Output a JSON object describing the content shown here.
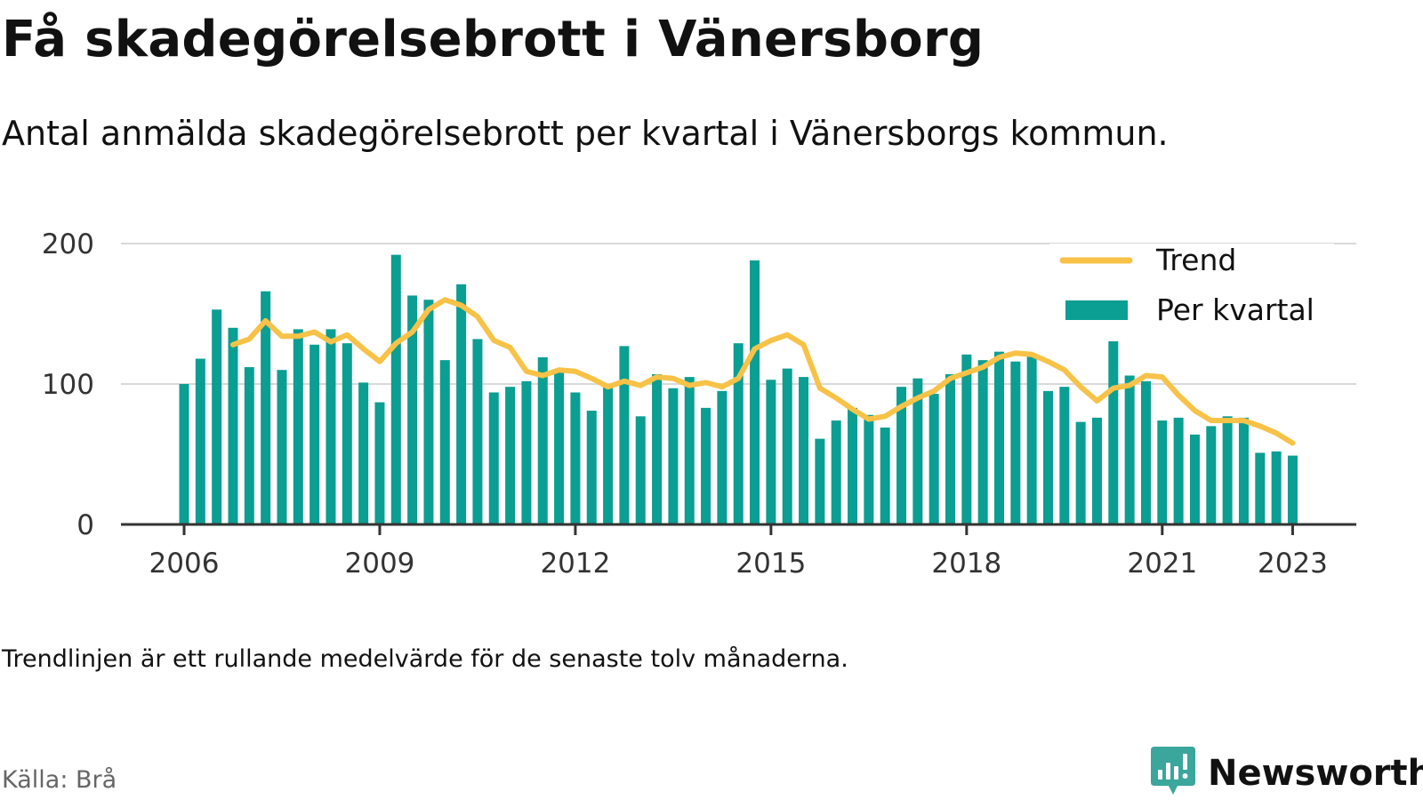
{
  "header": {
    "title": "Få skadegörelsebrott i Vänersborg",
    "subtitle": "Antal anmälda skadegörelsebrott per kvartal i Vänersborgs kommun."
  },
  "footer": {
    "footnote": "Trendlinjen är ett rullande medelvärde för de senaste tolv månaderna.",
    "source": "Källa: Brå",
    "brand_name": "Newsworthy"
  },
  "colors": {
    "bar": "#0b9e92",
    "trend": "#f7c247",
    "grid": "#d9d9d9",
    "axis": "#333333",
    "text": "#111111",
    "source": "#666666",
    "brand": "#3aa69c"
  },
  "icons": {
    "brand": "bar-chart-speech-bubble-icon"
  },
  "chart_data": {
    "type": "bar",
    "title": "Få skadegörelsebrott i Vänersborg",
    "subtitle": "Antal anmälda skadegörelsebrott per kvartal i Vänersborgs kommun.",
    "xlabel": "",
    "ylabel": "",
    "ylim": [
      0,
      200
    ],
    "yticks": [
      0,
      100,
      200
    ],
    "xticks": [
      {
        "label": "2006",
        "x": "2006 Q1"
      },
      {
        "label": "2009",
        "x": "2009 Q1"
      },
      {
        "label": "2012",
        "x": "2012 Q1"
      },
      {
        "label": "2015",
        "x": "2015 Q1"
      },
      {
        "label": "2018",
        "x": "2018 Q1"
      },
      {
        "label": "2021",
        "x": "2021 Q1"
      },
      {
        "label": "2023",
        "x": "2023 Q1"
      }
    ],
    "grid": true,
    "legend": "top-right",
    "categories": [
      "2006 Q1",
      "2006 Q2",
      "2006 Q3",
      "2006 Q4",
      "2007 Q1",
      "2007 Q2",
      "2007 Q3",
      "2007 Q4",
      "2008 Q1",
      "2008 Q2",
      "2008 Q3",
      "2008 Q4",
      "2009 Q1",
      "2009 Q2",
      "2009 Q3",
      "2009 Q4",
      "2010 Q1",
      "2010 Q2",
      "2010 Q3",
      "2010 Q4",
      "2011 Q1",
      "2011 Q2",
      "2011 Q3",
      "2011 Q4",
      "2012 Q1",
      "2012 Q2",
      "2012 Q3",
      "2012 Q4",
      "2013 Q1",
      "2013 Q2",
      "2013 Q3",
      "2013 Q4",
      "2014 Q1",
      "2014 Q2",
      "2014 Q3",
      "2014 Q4",
      "2015 Q1",
      "2015 Q2",
      "2015 Q3",
      "2015 Q4",
      "2016 Q1",
      "2016 Q2",
      "2016 Q3",
      "2016 Q4",
      "2017 Q1",
      "2017 Q2",
      "2017 Q3",
      "2017 Q4",
      "2018 Q1",
      "2018 Q2",
      "2018 Q3",
      "2018 Q4",
      "2019 Q1",
      "2019 Q2",
      "2019 Q3",
      "2019 Q4",
      "2020 Q1",
      "2020 Q2",
      "2020 Q3",
      "2020 Q4",
      "2021 Q1",
      "2021 Q2",
      "2021 Q3",
      "2021 Q4",
      "2022 Q1",
      "2022 Q2",
      "2022 Q3",
      "2022 Q4",
      "2023 Q1"
    ],
    "series": [
      {
        "name": "Per kvartal",
        "type": "bar",
        "values": [
          100,
          118,
          153,
          140,
          112,
          166,
          110,
          139,
          128,
          139,
          129,
          101,
          87,
          192,
          163,
          160,
          117,
          171,
          132,
          94,
          98,
          102,
          119,
          110,
          94,
          81,
          98,
          127,
          77,
          107,
          97,
          105,
          83,
          95,
          129,
          188,
          103,
          111,
          105,
          61,
          74,
          83,
          78,
          69,
          98,
          104,
          93,
          107,
          121,
          117,
          123,
          116,
          120,
          95,
          98,
          73,
          76,
          131,
          106,
          102,
          74,
          76,
          64,
          70,
          77,
          76,
          51,
          52,
          49
        ]
      },
      {
        "name": "Trend",
        "type": "line",
        "x": [
          "2006 Q4",
          "2007 Q1",
          "2007 Q2",
          "2007 Q3",
          "2007 Q4",
          "2008 Q1",
          "2008 Q2",
          "2008 Q3",
          "2008 Q4",
          "2009 Q1",
          "2009 Q2",
          "2009 Q3",
          "2009 Q4",
          "2010 Q1",
          "2010 Q2",
          "2010 Q3",
          "2010 Q4",
          "2011 Q1",
          "2011 Q2",
          "2011 Q3",
          "2011 Q4",
          "2012 Q1",
          "2012 Q2",
          "2012 Q3",
          "2012 Q4",
          "2013 Q1",
          "2013 Q2",
          "2013 Q3",
          "2013 Q4",
          "2014 Q1",
          "2014 Q2",
          "2014 Q3",
          "2014 Q4",
          "2015 Q1",
          "2015 Q2",
          "2015 Q3",
          "2015 Q4",
          "2016 Q1",
          "2016 Q2",
          "2016 Q3",
          "2016 Q4",
          "2017 Q1",
          "2017 Q2",
          "2017 Q3",
          "2017 Q4",
          "2018 Q1",
          "2018 Q2",
          "2018 Q3",
          "2018 Q4",
          "2019 Q1",
          "2019 Q2",
          "2019 Q3",
          "2019 Q4",
          "2020 Q1",
          "2020 Q2",
          "2020 Q3",
          "2020 Q4",
          "2021 Q1",
          "2021 Q2",
          "2021 Q3",
          "2021 Q4",
          "2022 Q1",
          "2022 Q2",
          "2022 Q3",
          "2022 Q4",
          "2023 Q1"
        ],
        "values": [
          128,
          132,
          145,
          134,
          134,
          137,
          130,
          135,
          125,
          116,
          129,
          137,
          153,
          160,
          156,
          148,
          131,
          126,
          109,
          106,
          110,
          109,
          104,
          98,
          102,
          99,
          105,
          104,
          99,
          101,
          98,
          104,
          125,
          131,
          135,
          128,
          97,
          90,
          82,
          75,
          77,
          84,
          90,
          95,
          104,
          108,
          112,
          119,
          122,
          121,
          116,
          110,
          98,
          88,
          97,
          99,
          106,
          105,
          92,
          81,
          74,
          74,
          74,
          70,
          65,
          58
        ]
      }
    ]
  }
}
